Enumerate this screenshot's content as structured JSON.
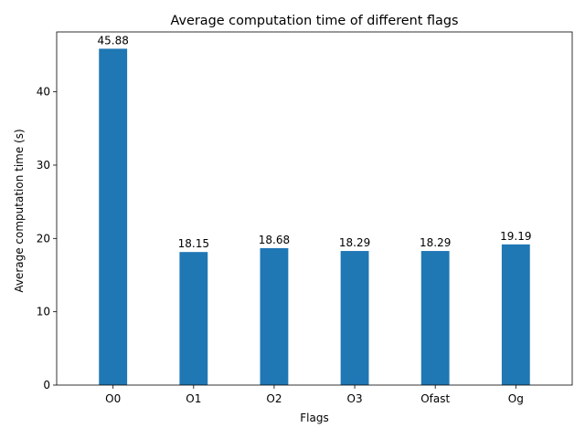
{
  "chart_data": {
    "type": "bar",
    "title": "Average computation time of different flags",
    "xlabel": "Flags",
    "ylabel": "Average computation time (s)",
    "categories": [
      "O0",
      "O1",
      "O2",
      "O3",
      "Ofast",
      "Og"
    ],
    "values": [
      45.88,
      18.15,
      18.68,
      18.29,
      18.29,
      19.19
    ],
    "data_labels": [
      "45.88",
      "18.15",
      "18.68",
      "18.29",
      "18.29",
      "19.19"
    ],
    "ylim": [
      0,
      48.17
    ],
    "yticks": [
      0,
      10,
      20,
      30,
      40
    ],
    "ytick_labels": [
      "0",
      "10",
      "20",
      "30",
      "40"
    ],
    "grid": false,
    "legend": "none",
    "bar_color": "#1f77b4"
  }
}
